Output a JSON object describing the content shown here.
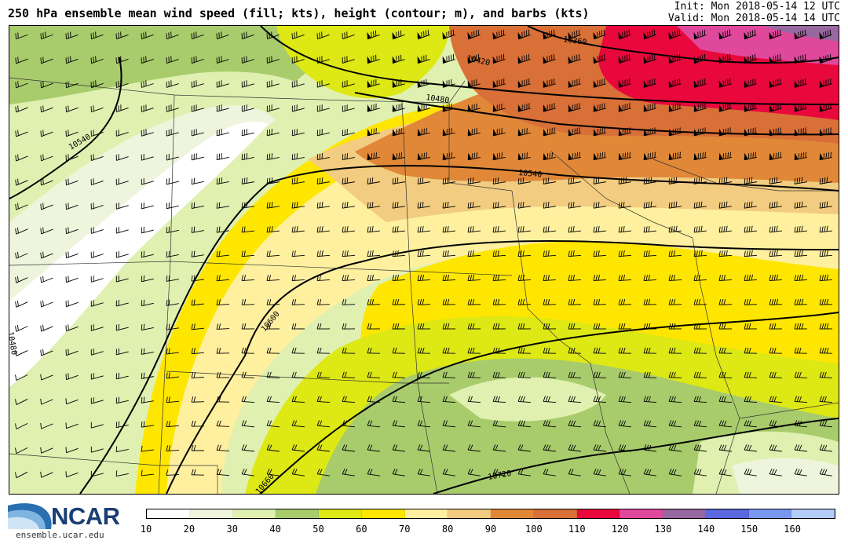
{
  "header": {
    "title": "250 hPa ensemble mean wind speed (fill; kts), height (contour; m), and barbs (kts)",
    "init": "Init: Mon 2018-05-14 12 UTC",
    "valid": "Valid: Mon 2018-05-14 14 UTC"
  },
  "contour_labels": [
    "10360",
    "10420",
    "10480",
    "10540",
    "10540",
    "10600",
    "10660",
    "10720",
    "10480"
  ],
  "colorbar": {
    "ticks": [
      "10",
      "20",
      "30",
      "40",
      "50",
      "60",
      "70",
      "80",
      "90",
      "100",
      "110",
      "120",
      "130",
      "140",
      "150",
      "160"
    ],
    "colors": [
      "#ffffff",
      "#eef5dc",
      "#dff0b0",
      "#a8cc6c",
      "#dde814",
      "#ffe600",
      "#fff0a0",
      "#f2cc80",
      "#e08838",
      "#d87038",
      "#e8083c",
      "#e0489c",
      "#9868a0",
      "#5c68e0",
      "#7898f0",
      "#b4ccf8"
    ]
  },
  "logo": {
    "name": "NCAR",
    "url": "ensemble.ucar.edu"
  }
}
